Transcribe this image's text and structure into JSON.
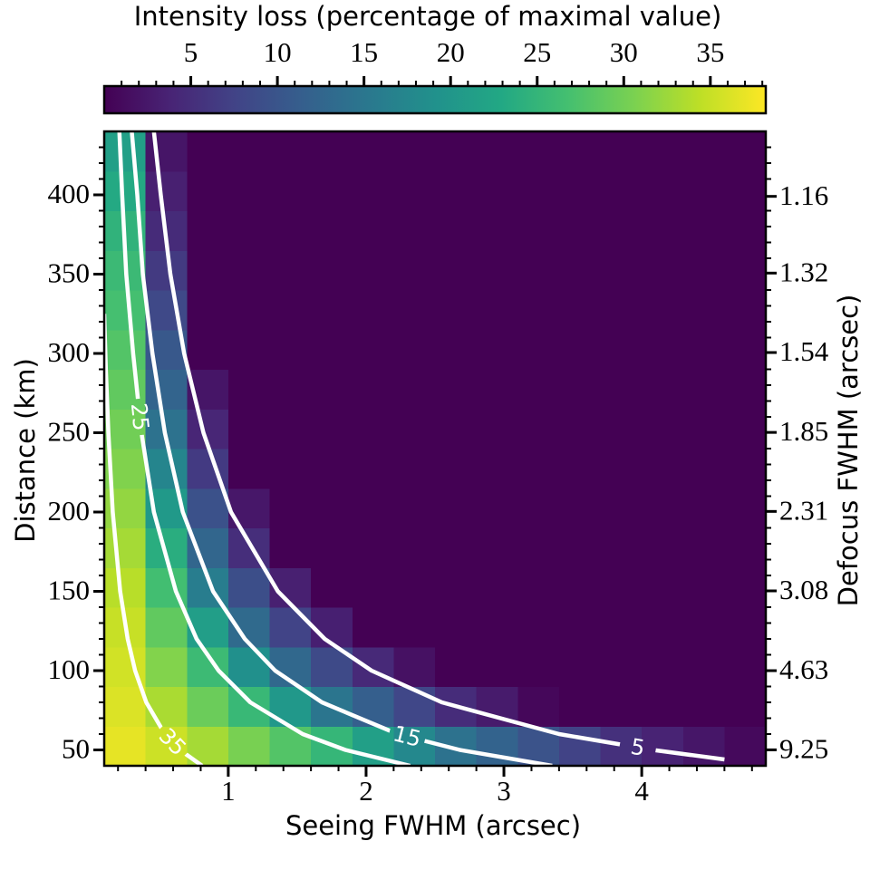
{
  "chart_data": {
    "type": "heatmap",
    "cmap": "viridis",
    "colorbar_label": "Intensity loss (percentage of maximal value)",
    "clim": [
      0,
      38.2
    ],
    "cticks": [
      5,
      10,
      15,
      20,
      25,
      30,
      35
    ],
    "cminor": [
      1,
      2,
      3,
      4,
      6,
      7,
      8,
      9,
      11,
      12,
      13,
      14,
      16,
      17,
      18,
      19,
      21,
      22,
      23,
      24,
      26,
      27,
      28,
      29,
      31,
      32,
      33,
      34,
      36,
      37,
      38
    ],
    "xlabel": "Seeing FWHM (arcsec)",
    "ylabel": "Distance (km)",
    "y2label": "Defocus FWHM (arcsec)",
    "xlim": [
      0.1,
      4.9
    ],
    "ylim": [
      40,
      440
    ],
    "xticks": [
      1,
      2,
      3,
      4
    ],
    "yticks": [
      50,
      100,
      150,
      200,
      250,
      300,
      350,
      400
    ],
    "xminor": [
      0.2,
      0.4,
      0.6,
      0.8,
      1.2,
      1.4,
      1.6,
      1.8,
      2.2,
      2.4,
      2.6,
      2.8,
      3.2,
      3.4,
      3.6,
      3.8,
      4.2,
      4.4,
      4.6,
      4.8
    ],
    "yminor": [
      60,
      70,
      80,
      90,
      110,
      120,
      130,
      140,
      160,
      170,
      180,
      190,
      210,
      220,
      230,
      240,
      260,
      270,
      280,
      290,
      310,
      320,
      330,
      340,
      360,
      370,
      380,
      390,
      410,
      420,
      430
    ],
    "y2lim": [
      11.575,
      1.052
    ],
    "y2scale": "reciprocal",
    "y2ticks": [
      1.16,
      1.32,
      1.54,
      1.85,
      2.31,
      3.08,
      4.63,
      9.25
    ],
    "x_bins": [
      0.1,
      0.4,
      0.7,
      1.0,
      1.3,
      1.6,
      1.9,
      2.2,
      2.5,
      2.8,
      3.1,
      3.4,
      3.7,
      4.0,
      4.3,
      4.6,
      4.9
    ],
    "y_bins": [
      40,
      65,
      90,
      115,
      140,
      165,
      190,
      215,
      240,
      265,
      290,
      315,
      340,
      365,
      390,
      415,
      440
    ],
    "z": [
      [
        36.8,
        35.3,
        33.0,
        30.4,
        27.8,
        25.2,
        21.4,
        17.7,
        14.3,
        12.0,
        9.7,
        7.5,
        5.2,
        3.7,
        2.3,
        0.9
      ],
      [
        36.2,
        33.3,
        29.5,
        25.5,
        20.2,
        14.8,
        11.5,
        8.1,
        4.8,
        2.8,
        0.7,
        0,
        0,
        0,
        0,
        0
      ],
      [
        35.6,
        31.0,
        25.9,
        18.9,
        12.9,
        8.5,
        4.4,
        1.7,
        0,
        0,
        0,
        0,
        0,
        0,
        0,
        0
      ],
      [
        35.0,
        28.8,
        21.2,
        13.2,
        7.7,
        3.3,
        0,
        0,
        0,
        0,
        0,
        0,
        0,
        0,
        0,
        0
      ],
      [
        34.1,
        26.5,
        16.1,
        9.1,
        3.4,
        0,
        0,
        0,
        0,
        0,
        0,
        0,
        0,
        0,
        0,
        0
      ],
      [
        33.0,
        23.8,
        12.6,
        5.0,
        0,
        0,
        0,
        0,
        0,
        0,
        0,
        0,
        0,
        0,
        0,
        0
      ],
      [
        32.0,
        20.4,
        9.5,
        2.4,
        0,
        0,
        0,
        0,
        0,
        0,
        0,
        0,
        0,
        0,
        0,
        0
      ],
      [
        30.9,
        17.2,
        6.5,
        0,
        0,
        0,
        0,
        0,
        0,
        0,
        0,
        0,
        0,
        0,
        0,
        0
      ],
      [
        29.9,
        14.3,
        4.0,
        0,
        0,
        0,
        0,
        0,
        0,
        0,
        0,
        0,
        0,
        0,
        0,
        0
      ],
      [
        28.8,
        12.3,
        2.2,
        0,
        0,
        0,
        0,
        0,
        0,
        0,
        0,
        0,
        0,
        0,
        0,
        0
      ],
      [
        27.8,
        10.4,
        0,
        0,
        0,
        0,
        0,
        0,
        0,
        0,
        0,
        0,
        0,
        0,
        0,
        0
      ],
      [
        26.8,
        8.4,
        0,
        0,
        0,
        0,
        0,
        0,
        0,
        0,
        0,
        0,
        0,
        0,
        0,
        0
      ],
      [
        25.8,
        6.4,
        0,
        0,
        0,
        0,
        0,
        0,
        0,
        0,
        0,
        0,
        0,
        0,
        0,
        0
      ],
      [
        24.6,
        4.7,
        0,
        0,
        0,
        0,
        0,
        0,
        0,
        0,
        0,
        0,
        0,
        0,
        0,
        0
      ],
      [
        23.1,
        3.4,
        0,
        0,
        0,
        0,
        0,
        0,
        0,
        0,
        0,
        0,
        0,
        0,
        0,
        0
      ],
      [
        21.5,
        2.2,
        0,
        0,
        0,
        0,
        0,
        0,
        0,
        0,
        0,
        0,
        0,
        0,
        0,
        0
      ]
    ],
    "contours": [
      {
        "level": 5,
        "color": "#ffffff",
        "x": [
          0.46,
          0.51,
          0.58,
          0.68,
          0.82,
          1.02,
          1.36,
          1.7,
          2.04,
          2.55,
          3.4,
          4.08,
          4.6
        ],
        "y": [
          440,
          400,
          350,
          300,
          250,
          200,
          150,
          120,
          100,
          80,
          60,
          50,
          44
        ]
      },
      {
        "level": 15,
        "color": "#ffffff",
        "x": [
          0.3,
          0.34,
          0.38,
          0.45,
          0.54,
          0.67,
          0.89,
          1.12,
          1.34,
          1.68,
          2.23,
          2.68,
          3.35
        ],
        "y": [
          440,
          400,
          350,
          300,
          250,
          200,
          150,
          120,
          100,
          80,
          60,
          50,
          40
        ]
      },
      {
        "level": 25,
        "color": "#ffffff",
        "x": [
          0.21,
          0.23,
          0.26,
          0.31,
          0.37,
          0.46,
          0.62,
          0.77,
          0.93,
          1.16,
          1.54,
          1.85,
          2.32
        ],
        "y": [
          440,
          400,
          350,
          300,
          250,
          200,
          150,
          120,
          100,
          80,
          60,
          50,
          40
        ]
      },
      {
        "level": 35,
        "color": "#ffffff",
        "x": [
          0.1,
          0.112,
          0.13,
          0.162,
          0.216,
          0.27,
          0.324,
          0.405,
          0.54,
          0.65,
          0.81
        ],
        "y": [
          325,
          290,
          250,
          200,
          150,
          120,
          100,
          80,
          60,
          50,
          40
        ]
      }
    ]
  }
}
